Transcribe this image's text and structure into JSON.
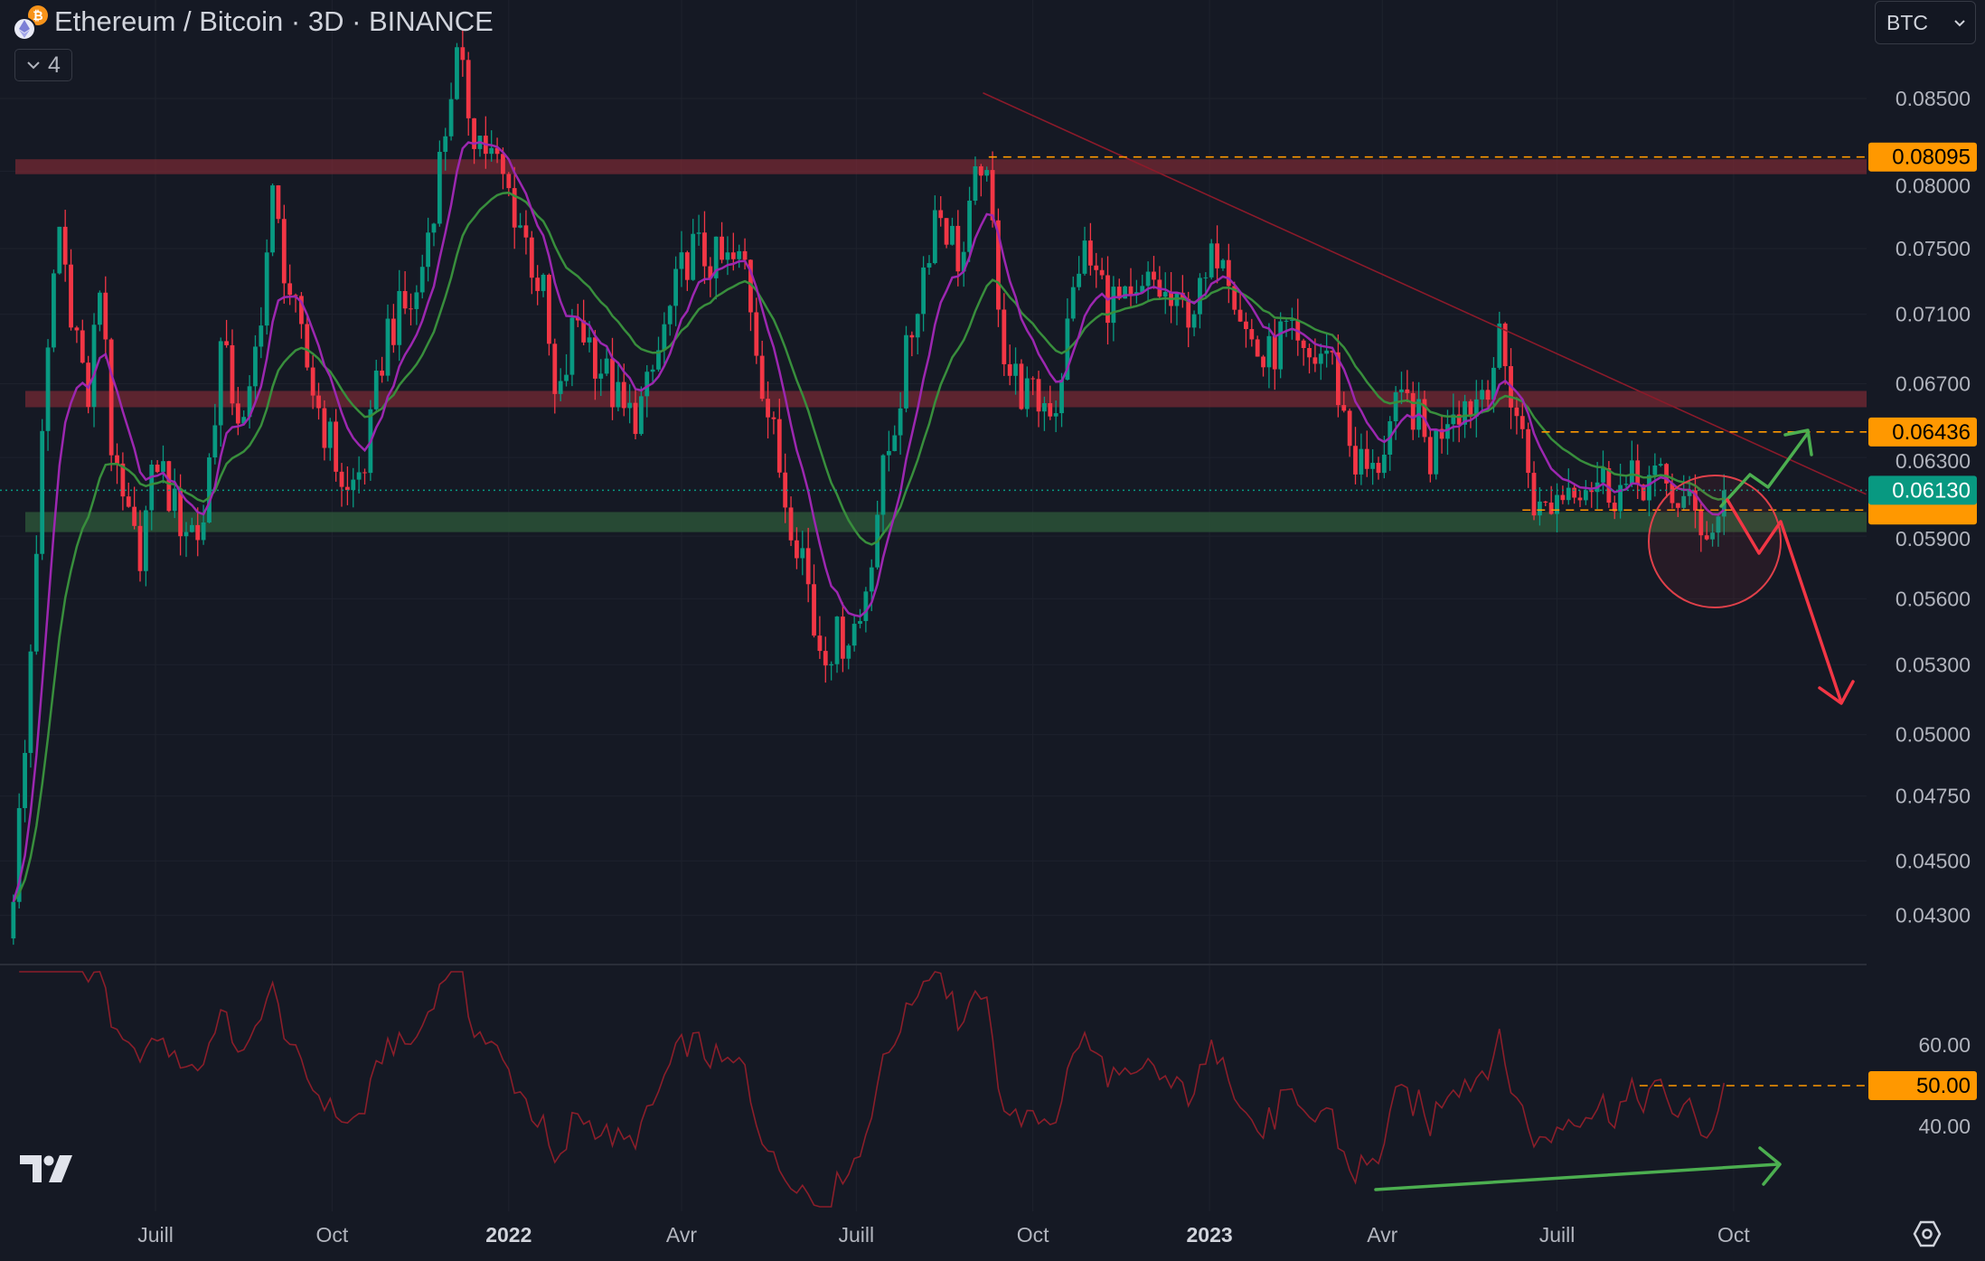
{
  "header": {
    "title": "Ethereum / Bitcoin · 3D · BINANCE",
    "legend_toggle_count": "4",
    "currency_select": "BTC",
    "icons": [
      "ethereum-icon",
      "bitcoin-icon",
      "chevron-down-icon",
      "tradingview-logo",
      "settings-icon"
    ]
  },
  "colors": {
    "background": "#151924",
    "up": "#089981",
    "down": "#f23645",
    "ma_fast": "#9c27b0",
    "ma_slow": "#388e3c",
    "rsi": "#8b1e2a",
    "level": "#ff9800",
    "last_price": "#089981",
    "trendline": "#8b1a2a",
    "resistance_zone": "#7a2a35",
    "support_zone": "#2e5a3a"
  },
  "chart_data": [
    {
      "type": "candlestick",
      "symbol": "ETH/BTC",
      "interval": "3D",
      "y_scale": "log",
      "ylim": [
        0.0415,
        0.0875
      ],
      "y_ticks": [
        "0.08500",
        "0.08000",
        "0.07500",
        "0.07100",
        "0.06700",
        "0.06300",
        "0.05900",
        "0.05600",
        "0.05300",
        "0.05000",
        "0.04750",
        "0.04500",
        "0.04300"
      ],
      "x_ticks": [
        {
          "label": "Juill",
          "date": "2021-07-01",
          "bold": false
        },
        {
          "label": "Oct",
          "date": "2021-10-01",
          "bold": false
        },
        {
          "label": "2022",
          "date": "2022-01-01",
          "bold": true
        },
        {
          "label": "Avr",
          "date": "2022-04-01",
          "bold": false
        },
        {
          "label": "Juill",
          "date": "2022-07-01",
          "bold": false
        },
        {
          "label": "Oct",
          "date": "2022-10-01",
          "bold": false
        },
        {
          "label": "2023",
          "date": "2023-01-01",
          "bold": true
        },
        {
          "label": "Avr",
          "date": "2023-04-01",
          "bold": false
        },
        {
          "label": "Juill",
          "date": "2023-07-01",
          "bold": false
        },
        {
          "label": "Oct",
          "date": "2023-10-01",
          "bold": false
        }
      ],
      "close_series": [
        [
          "2021-04-18",
          0.0441
        ],
        [
          "2021-04-24",
          0.0491
        ],
        [
          "2021-05-01",
          0.0605
        ],
        [
          "2021-05-11",
          0.0771
        ],
        [
          "2021-05-17",
          0.0724
        ],
        [
          "2021-05-27",
          0.066
        ],
        [
          "2021-06-03",
          0.074
        ],
        [
          "2021-06-09",
          0.062
        ],
        [
          "2021-06-22",
          0.058
        ],
        [
          "2021-07-02",
          0.063
        ],
        [
          "2021-07-12",
          0.06
        ],
        [
          "2021-07-25",
          0.059
        ],
        [
          "2021-08-04",
          0.069
        ],
        [
          "2021-08-17",
          0.064
        ],
        [
          "2021-08-31",
          0.078
        ],
        [
          "2021-09-13",
          0.07
        ],
        [
          "2021-09-23",
          0.066
        ],
        [
          "2021-10-09",
          0.061
        ],
        [
          "2021-10-19",
          0.063
        ],
        [
          "2021-10-29",
          0.07
        ],
        [
          "2021-11-14",
          0.072
        ],
        [
          "2021-11-28",
          0.082
        ],
        [
          "2021-12-04",
          0.088
        ],
        [
          "2021-12-14",
          0.083
        ],
        [
          "2021-12-27",
          0.08
        ],
        [
          "2022-01-06",
          0.077
        ],
        [
          "2022-01-19",
          0.072
        ],
        [
          "2022-01-26",
          0.065
        ],
        [
          "2022-02-05",
          0.071
        ],
        [
          "2022-02-18",
          0.068
        ],
        [
          "2022-03-03",
          0.065
        ],
        [
          "2022-03-13",
          0.066
        ],
        [
          "2022-03-23",
          0.07
        ],
        [
          "2022-04-05",
          0.075
        ],
        [
          "2022-04-21",
          0.074
        ],
        [
          "2022-05-04",
          0.074
        ],
        [
          "2022-05-15",
          0.066
        ],
        [
          "2022-05-25",
          0.061
        ],
        [
          "2022-06-04",
          0.058
        ],
        [
          "2022-06-10",
          0.054
        ],
        [
          "2022-06-20",
          0.054
        ],
        [
          "2022-07-03",
          0.055
        ],
        [
          "2022-07-13",
          0.061
        ],
        [
          "2022-07-23",
          0.066
        ],
        [
          "2022-08-02",
          0.072
        ],
        [
          "2022-08-12",
          0.078
        ],
        [
          "2022-08-25",
          0.074
        ],
        [
          "2022-09-04",
          0.081
        ],
        [
          "2022-09-10",
          0.076
        ],
        [
          "2022-09-17",
          0.068
        ],
        [
          "2022-09-30",
          0.066
        ],
        [
          "2022-10-13",
          0.066
        ],
        [
          "2022-10-26",
          0.075
        ],
        [
          "2022-11-09",
          0.072
        ],
        [
          "2022-11-22",
          0.071
        ],
        [
          "2022-12-02",
          0.073
        ],
        [
          "2022-12-15",
          0.071
        ],
        [
          "2022-12-28",
          0.072
        ],
        [
          "2023-01-07",
          0.076
        ],
        [
          "2023-01-20",
          0.07
        ],
        [
          "2023-01-30",
          0.068
        ],
        [
          "2023-02-09",
          0.07
        ],
        [
          "2023-02-19",
          0.068
        ],
        [
          "2023-03-04",
          0.069
        ],
        [
          "2023-03-17",
          0.063
        ],
        [
          "2023-03-27",
          0.062
        ],
        [
          "2023-04-06",
          0.065
        ],
        [
          "2023-04-16",
          0.066
        ],
        [
          "2023-04-26",
          0.063
        ],
        [
          "2023-05-06",
          0.066
        ],
        [
          "2023-05-19",
          0.066
        ],
        [
          "2023-06-01",
          0.069
        ],
        [
          "2023-06-11",
          0.065
        ],
        [
          "2023-06-21",
          0.06
        ],
        [
          "2023-07-01",
          0.061
        ],
        [
          "2023-07-11",
          0.062
        ],
        [
          "2023-07-24",
          0.0617
        ],
        [
          "2023-08-06",
          0.0613
        ],
        [
          "2023-08-16",
          0.062
        ],
        [
          "2023-08-29",
          0.0613
        ],
        [
          "2023-09-11",
          0.06
        ],
        [
          "2023-09-21",
          0.0592
        ],
        [
          "2023-09-27",
          0.0613
        ]
      ],
      "indicators": [
        "EMA fast",
        "EMA slow"
      ],
      "last_price": "0.06130",
      "price_levels": [
        {
          "price": 0.08095,
          "label": "0.08095",
          "from": "2022-09-08"
        },
        {
          "price": 0.06436,
          "label": "0.06436",
          "from": "2023-06-23"
        },
        {
          "price": 0.0603,
          "label": "",
          "from": "2023-06-13"
        }
      ],
      "zones": [
        {
          "type": "resistance",
          "from": 0.0798,
          "to": 0.0808
        },
        {
          "type": "resistance",
          "from": 0.0657,
          "to": 0.0666
        },
        {
          "type": "support",
          "from": 0.0592,
          "to": 0.0602
        }
      ],
      "trendline": {
        "from": [
          "2022-09-05",
          0.0854
        ],
        "to": [
          "2023-12-09",
          0.0611
        ]
      }
    },
    {
      "type": "line",
      "indicator": "RSI",
      "y_ticks": [
        "60.00",
        "40.00"
      ],
      "level": {
        "value": 50,
        "label": "50.00",
        "from": "2023-08-13"
      }
    }
  ]
}
